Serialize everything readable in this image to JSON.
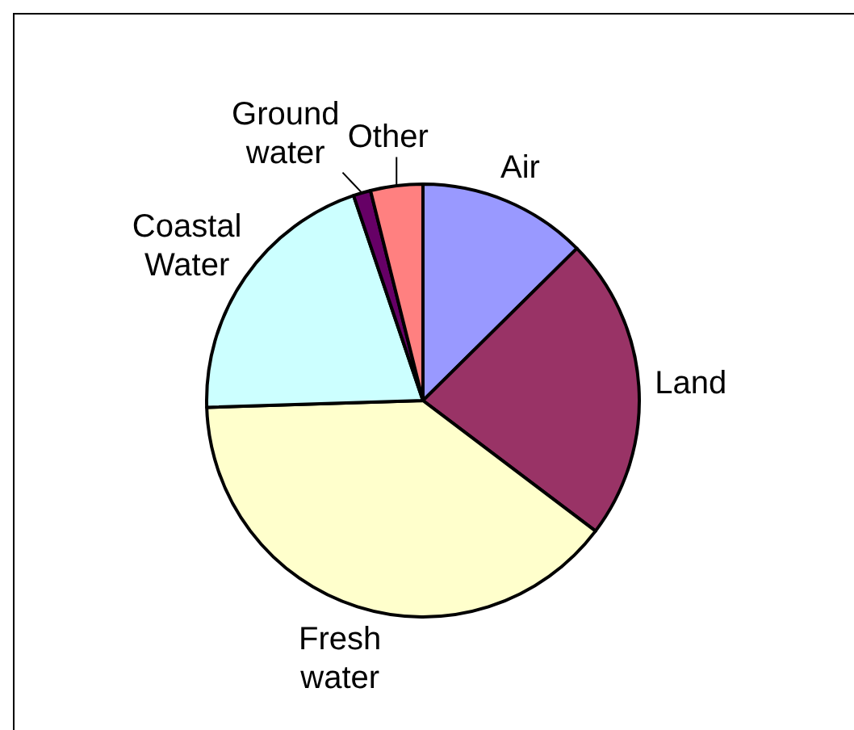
{
  "chart_data": {
    "type": "pie",
    "categories": [
      "Air",
      "Land",
      "Fresh water",
      "Coastal Water",
      "Ground water",
      "Other"
    ],
    "values": [
      12.6,
      22.7,
      39.2,
      20.3,
      1.3,
      3.9
    ],
    "colors": [
      "#9999ff",
      "#993366",
      "#ffffcc",
      "#ccffff",
      "#660066",
      "#ff8080"
    ]
  }
}
